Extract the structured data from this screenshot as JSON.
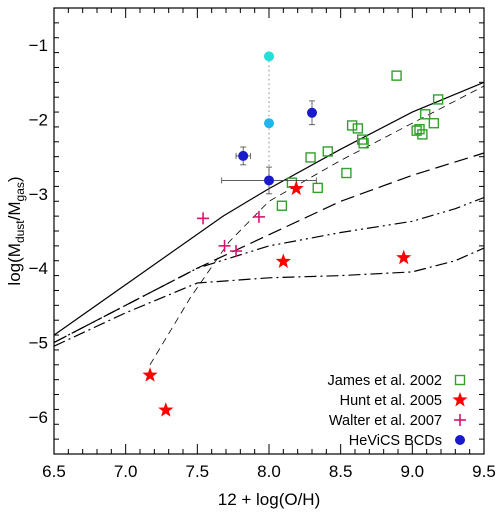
{
  "chart_data": {
    "type": "scatter",
    "xlabel": "12 + log(O/H)",
    "ylabel": "log(M",
    "ylabel_sub1": "dust",
    "ylabel_mid": "/M",
    "ylabel_sub2": "gas",
    "ylabel_end": ")",
    "xlim": [
      6.5,
      9.5
    ],
    "ylim": [
      -6.5,
      -0.5
    ],
    "xticks": [
      "6.5",
      "7.0",
      "7.5",
      "8.0",
      "8.5",
      "9.0",
      "9.5"
    ],
    "yticks": [
      "−6",
      "−5",
      "−4",
      "−3",
      "−2",
      "−1"
    ],
    "grid": false,
    "legend_position": "bottom-right",
    "legend": [
      {
        "label": "James et al. 2002",
        "marker": "open-square",
        "color": "#33a02c"
      },
      {
        "label": "Hunt et al. 2005",
        "marker": "star",
        "color": "#ff0000"
      },
      {
        "label": "Walter et al. 2007",
        "marker": "plus",
        "color": "#d6156f"
      },
      {
        "label": "HeViCS BCDs",
        "marker": "filled-circle",
        "color": "#1a1acc"
      }
    ],
    "series": [
      {
        "name": "James et al. 2002",
        "marker": "open-square",
        "color": "#33a02c",
        "points": [
          {
            "x": 8.89,
            "y": -1.41
          },
          {
            "x": 9.18,
            "y": -1.73
          },
          {
            "x": 9.09,
            "y": -1.93
          },
          {
            "x": 9.15,
            "y": -2.05
          },
          {
            "x": 9.05,
            "y": -2.13
          },
          {
            "x": 9.03,
            "y": -2.15
          },
          {
            "x": 9.07,
            "y": -2.2
          },
          {
            "x": 8.58,
            "y": -2.08
          },
          {
            "x": 8.62,
            "y": -2.12
          },
          {
            "x": 8.65,
            "y": -2.27
          },
          {
            "x": 8.66,
            "y": -2.32
          },
          {
            "x": 8.41,
            "y": -2.43
          },
          {
            "x": 8.29,
            "y": -2.51
          },
          {
            "x": 8.54,
            "y": -2.72
          },
          {
            "x": 8.16,
            "y": -2.85
          },
          {
            "x": 8.34,
            "y": -2.92
          },
          {
            "x": 8.09,
            "y": -3.16
          }
        ]
      },
      {
        "name": "Hunt et al. 2005",
        "marker": "star",
        "color": "#ff0000",
        "points": [
          {
            "x": 8.19,
            "y": -2.93
          },
          {
            "x": 8.1,
            "y": -3.91
          },
          {
            "x": 8.94,
            "y": -3.86
          },
          {
            "x": 7.17,
            "y": -5.44
          },
          {
            "x": 7.28,
            "y": -5.91
          }
        ]
      },
      {
        "name": "Walter et al. 2007",
        "marker": "plus",
        "color": "#d6156f",
        "points": [
          {
            "x": 7.54,
            "y": -3.33
          },
          {
            "x": 7.93,
            "y": -3.31
          },
          {
            "x": 7.69,
            "y": -3.7
          },
          {
            "x": 7.77,
            "y": -3.77
          }
        ]
      },
      {
        "name": "HeViCS BCDs",
        "marker": "filled-circle",
        "points": [
          {
            "x": 8.0,
            "y": -1.15,
            "color": "#22e0d8"
          },
          {
            "x": 8.0,
            "y": -2.05,
            "color": "#22b4ee"
          },
          {
            "x": 8.3,
            "y": -1.91,
            "color": "#1a1acc",
            "yerr": 0.16
          },
          {
            "x": 7.82,
            "y": -2.49,
            "color": "#1a1acc",
            "xerr": 0.05,
            "yerr": 0.12
          },
          {
            "x": 8.0,
            "y": -2.82,
            "color": "#1a1acc",
            "xerr": 0.33,
            "yerr": 0.18
          }
        ]
      }
    ],
    "connectors": [
      {
        "style": "dotted",
        "color": "#888888",
        "x": [
          8.0,
          8.0
        ],
        "y": [
          -1.15,
          -2.82
        ]
      }
    ],
    "curves": [
      {
        "style": "solid",
        "color": "#000000",
        "x": [
          6.5,
          7.68,
          8.0,
          8.5,
          9.0,
          9.5
        ],
        "y": [
          -4.9,
          -3.3,
          -2.93,
          -2.4,
          -1.9,
          -1.5
        ]
      },
      {
        "style": "dashed",
        "color": "#000000",
        "x": [
          6.5,
          7.0,
          7.5,
          8.0,
          8.5,
          9.0,
          9.5
        ],
        "y": [
          -5.0,
          -4.5,
          -4.0,
          -3.55,
          -3.1,
          -2.75,
          -2.45
        ]
      },
      {
        "style": "dash-dot-dot",
        "color": "#000000",
        "x": [
          6.5,
          7.0,
          7.5,
          8.0,
          8.5,
          9.0,
          9.3,
          9.5
        ],
        "y": [
          -5.0,
          -4.5,
          -4.0,
          -3.7,
          -3.52,
          -3.37,
          -3.2,
          -3.05
        ]
      },
      {
        "style": "dash-dot",
        "color": "#000000",
        "x": [
          6.5,
          7.0,
          7.5,
          8.0,
          8.5,
          9.0,
          9.3,
          9.5
        ],
        "y": [
          -5.05,
          -4.6,
          -4.2,
          -4.13,
          -4.1,
          -4.05,
          -3.9,
          -3.73
        ]
      },
      {
        "style": "thin-dashed",
        "color": "#000000",
        "x": [
          7.17,
          7.45,
          7.72,
          8.0,
          8.5,
          9.0,
          9.5
        ],
        "y": [
          -5.3,
          -4.4,
          -3.65,
          -3.1,
          -2.55,
          -2.05,
          -1.55
        ]
      }
    ]
  }
}
